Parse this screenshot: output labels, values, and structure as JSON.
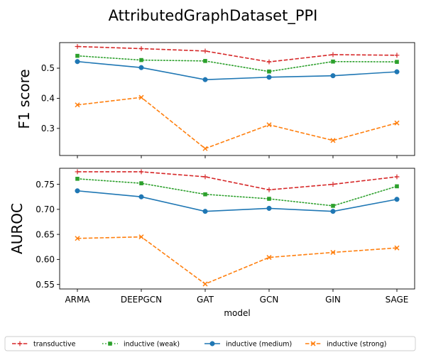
{
  "chart_data": {
    "title": "AttributedGraphDataset_PPI",
    "type": "line",
    "xlabel": "model",
    "categories": [
      "ARMA",
      "DEEPGCN",
      "GAT",
      "GCN",
      "GIN",
      "SAGE"
    ],
    "legend_position": "bottom",
    "series_styles": [
      {
        "name": "transductive",
        "color": "#d62728",
        "marker": "plus",
        "dash": "dashed"
      },
      {
        "name": "inductive (weak)",
        "color": "#2ca02c",
        "marker": "square",
        "dash": "dotted"
      },
      {
        "name": "inductive (medium)",
        "color": "#1f77b4",
        "marker": "circle",
        "dash": "solid"
      },
      {
        "name": "inductive (strong)",
        "color": "#ff7f0e",
        "marker": "x",
        "dash": "dashed"
      }
    ],
    "panels": [
      {
        "ylabel": "F1 score",
        "ylim": [
          0.21,
          0.585
        ],
        "yticks": [
          0.3,
          0.4,
          0.5
        ],
        "ytick_labels": [
          "0.3",
          "0.4",
          "0.5"
        ],
        "show_xticklabels": false,
        "series": [
          {
            "name": "transductive",
            "values": [
              0.572,
              0.565,
              0.557,
              0.521,
              0.545,
              0.543
            ]
          },
          {
            "name": "inductive (weak)",
            "values": [
              0.541,
              0.527,
              0.524,
              0.489,
              0.522,
              0.521
            ]
          },
          {
            "name": "inductive (medium)",
            "values": [
              0.522,
              0.502,
              0.462,
              0.47,
              0.475,
              0.488
            ]
          },
          {
            "name": "inductive (strong)",
            "values": [
              0.378,
              0.403,
              0.233,
              0.312,
              0.26,
              0.318
            ]
          }
        ]
      },
      {
        "ylabel": "AUROC",
        "ylim": [
          0.541,
          0.782
        ],
        "yticks": [
          0.55,
          0.6,
          0.65,
          0.7,
          0.75
        ],
        "ytick_labels": [
          "0.55",
          "0.60",
          "0.65",
          "0.70",
          "0.75"
        ],
        "show_xticklabels": true,
        "series": [
          {
            "name": "transductive",
            "values": [
              0.775,
              0.775,
              0.765,
              0.739,
              0.75,
              0.765
            ]
          },
          {
            "name": "inductive (weak)",
            "values": [
              0.761,
              0.752,
              0.73,
              0.721,
              0.707,
              0.746
            ]
          },
          {
            "name": "inductive (medium)",
            "values": [
              0.737,
              0.725,
              0.696,
              0.702,
              0.696,
              0.72
            ]
          },
          {
            "name": "inductive (strong)",
            "values": [
              0.642,
              0.645,
              0.551,
              0.604,
              0.614,
              0.623
            ]
          }
        ]
      }
    ]
  }
}
